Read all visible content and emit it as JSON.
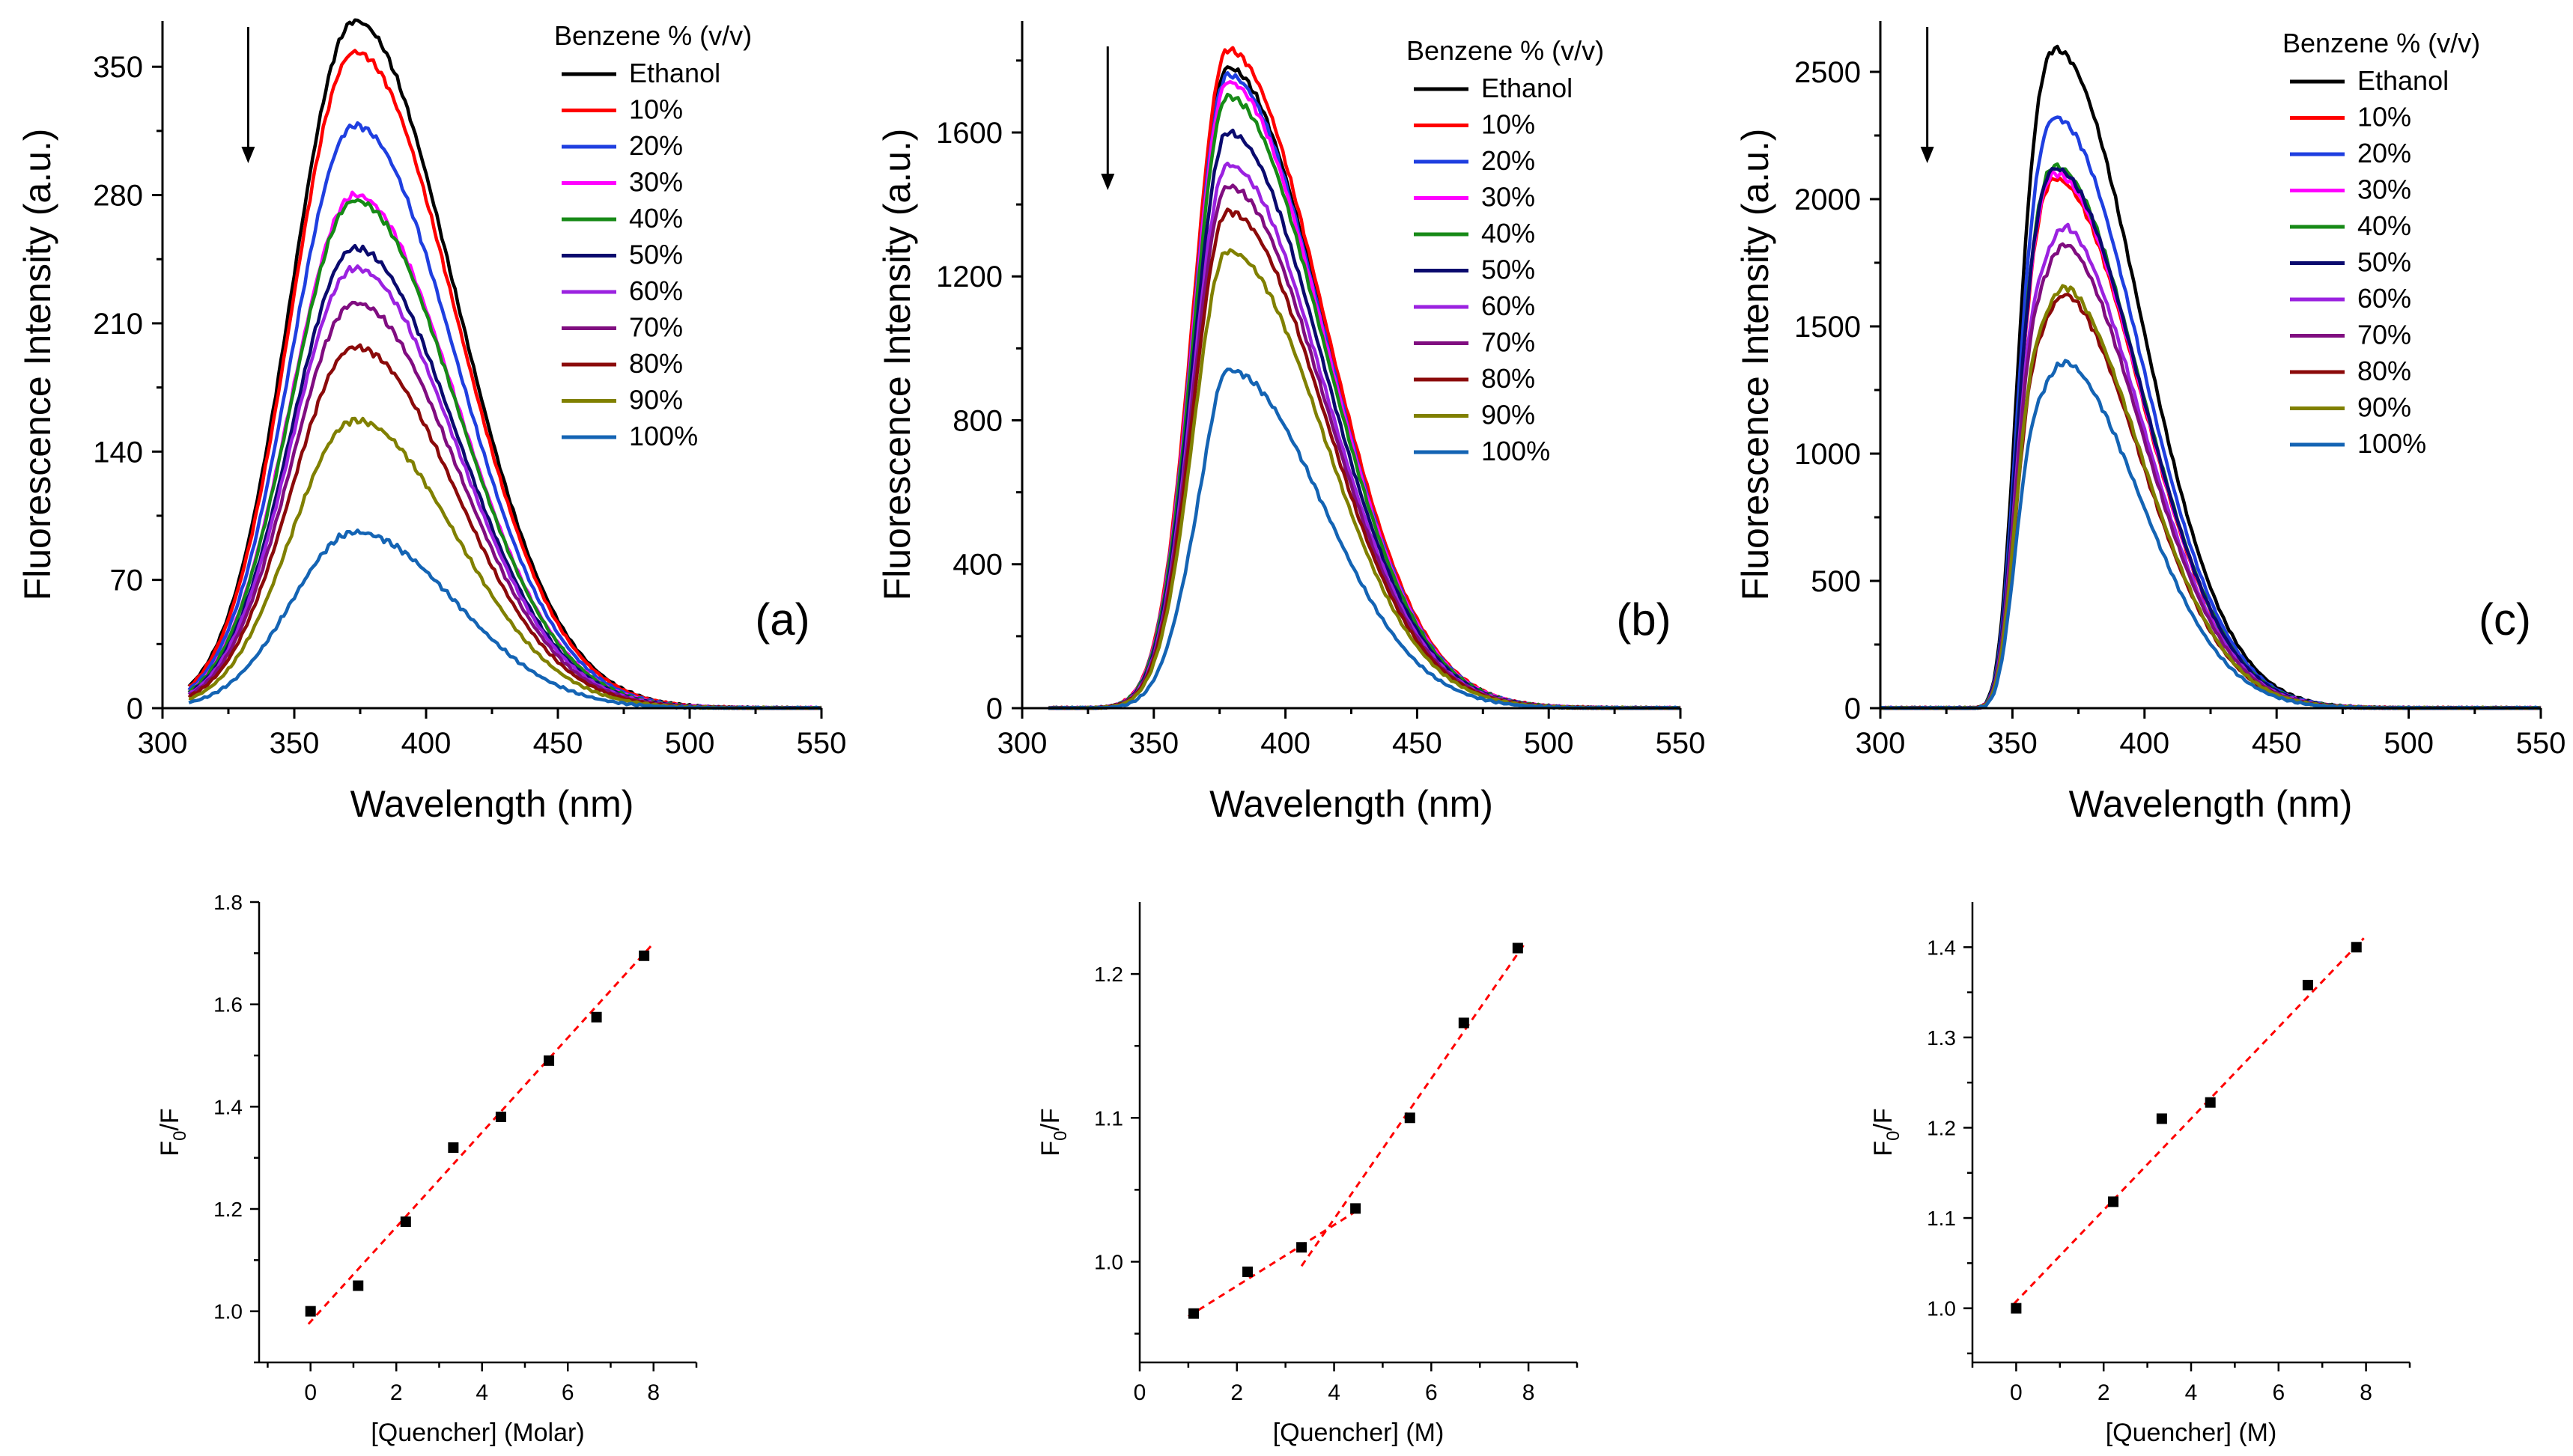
{
  "legend_title": "Benzene % (v/v)",
  "chart_data": [
    {
      "id": "a",
      "type": "line",
      "panel_label": "(a)",
      "xlabel": "Wavelength (nm)",
      "ylabel": "Fluorescence Intensity (a.u.)",
      "xlim": [
        300,
        550
      ],
      "ylim": [
        0,
        375
      ],
      "xticks": [
        300,
        350,
        400,
        450,
        500,
        550
      ],
      "yticks": [
        0,
        70,
        140,
        210,
        280,
        350
      ],
      "x_start": 310,
      "peak_x": 373,
      "arrow": true,
      "series": [
        {
          "name": "Ethanol",
          "color": "#000000",
          "peak": 375
        },
        {
          "name": "10%",
          "color": "#ff0000",
          "peak": 358
        },
        {
          "name": "20%",
          "color": "#1f3fe0",
          "peak": 318
        },
        {
          "name": "30%",
          "color": "#ff00ff",
          "peak": 280
        },
        {
          "name": "40%",
          "color": "#178a17",
          "peak": 277
        },
        {
          "name": "50%",
          "color": "#0a0a6e",
          "peak": 251
        },
        {
          "name": "60%",
          "color": "#9b22e0",
          "peak": 240
        },
        {
          "name": "70%",
          "color": "#800d80",
          "peak": 221
        },
        {
          "name": "80%",
          "color": "#8b0a0a",
          "peak": 197
        },
        {
          "name": "90%",
          "color": "#808000",
          "peak": 157
        },
        {
          "name": "100%",
          "color": "#1464b4",
          "peak": 96
        }
      ]
    },
    {
      "id": "b",
      "type": "line",
      "panel_label": "(b)",
      "xlabel": "Wavelength (nm)",
      "ylabel": "Fluorescence Intensity (a.u.)",
      "xlim": [
        300,
        550
      ],
      "ylim": [
        0,
        1910
      ],
      "xticks": [
        300,
        350,
        400,
        450,
        500,
        550
      ],
      "yticks": [
        0,
        400,
        800,
        1200,
        1600
      ],
      "x_start": 310,
      "peak_x": 378,
      "arrow": true,
      "series": [
        {
          "name": "Ethanol",
          "color": "#000000",
          "peak": 1780
        },
        {
          "name": "10%",
          "color": "#ff0000",
          "peak": 1830
        },
        {
          "name": "20%",
          "color": "#1f3fe0",
          "peak": 1760
        },
        {
          "name": "30%",
          "color": "#ff00ff",
          "peak": 1740
        },
        {
          "name": "40%",
          "color": "#178a17",
          "peak": 1700
        },
        {
          "name": "50%",
          "color": "#0a0a6e",
          "peak": 1600
        },
        {
          "name": "60%",
          "color": "#9b22e0",
          "peak": 1510
        },
        {
          "name": "70%",
          "color": "#800d80",
          "peak": 1450
        },
        {
          "name": "80%",
          "color": "#8b0a0a",
          "peak": 1380
        },
        {
          "name": "90%",
          "color": "#808000",
          "peak": 1270
        },
        {
          "name": "100%",
          "color": "#1464b4",
          "peak": 940
        }
      ]
    },
    {
      "id": "c",
      "type": "line",
      "panel_label": "(c)",
      "xlabel": "Wavelength (nm)",
      "ylabel": "Fluorescence Intensity (a.u.)",
      "xlim": [
        300,
        550
      ],
      "ylim": [
        0,
        2700
      ],
      "xticks": [
        300,
        350,
        400,
        450,
        500,
        550
      ],
      "yticks": [
        0,
        500,
        1000,
        1500,
        2000,
        2500
      ],
      "x_start": 300,
      "peak_x": 366,
      "arrow": true,
      "series": [
        {
          "name": "Ethanol",
          "color": "#000000",
          "peak": 2590
        },
        {
          "name": "10%",
          "color": "#ff0000",
          "peak": 2080
        },
        {
          "name": "20%",
          "color": "#1f3fe0",
          "peak": 2320
        },
        {
          "name": "30%",
          "color": "#ff00ff",
          "peak": 2100
        },
        {
          "name": "40%",
          "color": "#178a17",
          "peak": 2130
        },
        {
          "name": "50%",
          "color": "#0a0a6e",
          "peak": 2120
        },
        {
          "name": "60%",
          "color": "#9b22e0",
          "peak": 1920
        },
        {
          "name": "70%",
          "color": "#800d80",
          "peak": 1850
        },
        {
          "name": "80%",
          "color": "#8b0a0a",
          "peak": 1650
        },
        {
          "name": "90%",
          "color": "#808000",
          "peak": 1680
        },
        {
          "name": "100%",
          "color": "#1464b4",
          "peak": 1380
        }
      ]
    },
    {
      "id": "d",
      "type": "scatter",
      "xlabel": "[Quencher] (Molar)",
      "ylabel_main": "F",
      "ylabel_sub": "0",
      "ylabel_rest": "/F",
      "xlim": [
        -1.2,
        9.0
      ],
      "ylim": [
        0.9,
        1.8
      ],
      "xticks": [
        0,
        2,
        4,
        6,
        8
      ],
      "yticks": [
        1.0,
        1.2,
        1.4,
        1.6,
        1.8
      ],
      "ydecimals": 1,
      "points": [
        [
          0,
          1.0
        ],
        [
          1.11,
          1.05
        ],
        [
          2.22,
          1.175
        ],
        [
          3.33,
          1.32
        ],
        [
          4.44,
          1.38
        ],
        [
          5.56,
          1.49
        ],
        [
          6.67,
          1.575
        ],
        [
          7.78,
          1.695
        ]
      ],
      "fits": [
        {
          "x": [
            -0.05,
            7.95
          ],
          "y": [
            0.975,
            1.715
          ]
        }
      ]
    },
    {
      "id": "e",
      "type": "scatter",
      "xlabel": "[Quencher] (M)",
      "ylabel_main": "F",
      "ylabel_sub": "0",
      "ylabel_rest": "/F",
      "xlim": [
        0,
        9.0
      ],
      "ylim": [
        0.93,
        1.25
      ],
      "xticks": [
        0,
        2,
        4,
        6,
        8
      ],
      "yticks": [
        1.0,
        1.1,
        1.2
      ],
      "ydecimals": 1,
      "points": [
        [
          1.11,
          0.964
        ],
        [
          2.22,
          0.993
        ],
        [
          3.33,
          1.01
        ],
        [
          4.44,
          1.037
        ],
        [
          5.56,
          1.1
        ],
        [
          6.67,
          1.166
        ],
        [
          7.78,
          1.218
        ]
      ],
      "fits": [
        {
          "x": [
            1.0,
            4.4
          ],
          "y": [
            0.962,
            1.034
          ]
        },
        {
          "x": [
            3.33,
            7.9
          ],
          "y": [
            0.997,
            1.22
          ]
        }
      ]
    },
    {
      "id": "f",
      "type": "scatter",
      "xlabel": "[Quencher] (M)",
      "ylabel_main": "F",
      "ylabel_sub": "0",
      "ylabel_rest": "/F",
      "xlim": [
        -1.0,
        9.0
      ],
      "ylim": [
        0.94,
        1.45
      ],
      "xticks": [
        0,
        2,
        4,
        6,
        8
      ],
      "yticks": [
        1.0,
        1.1,
        1.2,
        1.3,
        1.4
      ],
      "ydecimals": 1,
      "points": [
        [
          0,
          1.0
        ],
        [
          2.22,
          1.118
        ],
        [
          3.33,
          1.21
        ],
        [
          4.44,
          1.228
        ],
        [
          6.67,
          1.358
        ],
        [
          7.78,
          1.4
        ]
      ],
      "fits": [
        {
          "x": [
            -0.05,
            7.95
          ],
          "y": [
            1.005,
            1.41
          ]
        }
      ]
    }
  ]
}
